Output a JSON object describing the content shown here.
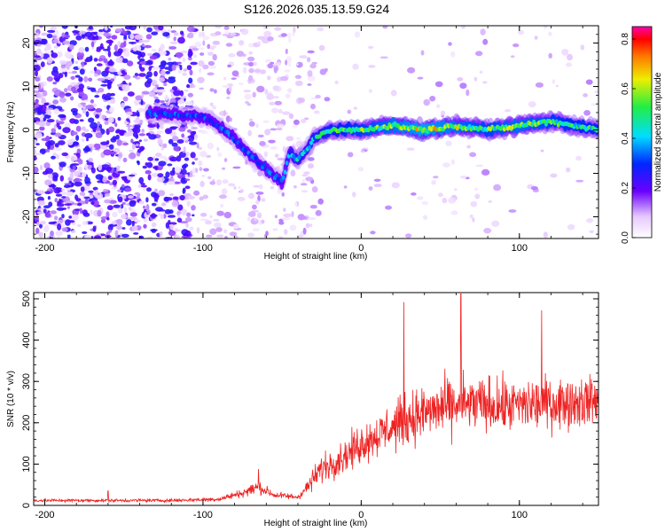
{
  "chart_data": [
    {
      "type": "heatmap",
      "title": "S126.2026.035.13.59.G24",
      "xlabel": "Height of straight line (km)",
      "ylabel": "Frequency (Hz)",
      "xlim": [
        -207,
        150
      ],
      "ylim": [
        -25,
        24
      ],
      "xticks": [
        -200,
        -100,
        0,
        100
      ],
      "xtick_labels": [
        "-200",
        "-100",
        "0",
        "100"
      ],
      "yticks": [
        -20,
        -10,
        0,
        10,
        20
      ],
      "ytick_labels": [
        "-20",
        "-10",
        "0",
        "10",
        "20"
      ],
      "colorbar": {
        "label": "Normalized spectral amplitude",
        "range": [
          0.0,
          0.85
        ],
        "ticks": [
          0.0,
          0.2,
          0.4,
          0.6,
          0.8
        ],
        "tick_labels": [
          "0.0",
          "0.2",
          "0.4",
          "0.6",
          "0.8"
        ]
      },
      "ridge": {
        "x": [
          -135,
          -100,
          -90,
          -80,
          -70,
          -60,
          -50,
          -45,
          -40,
          -35,
          -30,
          -20,
          0,
          20,
          40,
          60,
          80,
          100,
          120,
          150
        ],
        "y": [
          4,
          3,
          1,
          -2,
          -6,
          -9,
          -12,
          -5,
          -7,
          -5,
          -2,
          0,
          0,
          1,
          0,
          1,
          0,
          1,
          2,
          0
        ],
        "amplitude": [
          0.3,
          0.3,
          0.3,
          0.3,
          0.3,
          0.3,
          0.3,
          0.35,
          0.4,
          0.35,
          0.4,
          0.45,
          0.5,
          0.55,
          0.6,
          0.55,
          0.5,
          0.55,
          0.5,
          0.45
        ]
      }
    },
    {
      "type": "line",
      "xlabel": "Height of straight line (km)",
      "ylabel": "SNR (10 * v/v)",
      "xlim": [
        -207,
        150
      ],
      "ylim": [
        0,
        515
      ],
      "xticks": [
        -200,
        -100,
        0,
        100
      ],
      "xtick_labels": [
        "-200",
        "-100",
        "0",
        "100"
      ],
      "yticks": [
        0,
        100,
        200,
        300,
        400,
        500
      ],
      "ytick_labels": [
        "0",
        "100",
        "200",
        "300",
        "400",
        "500"
      ],
      "color": "#ee2222",
      "envelope": {
        "x": [
          -207,
          -120,
          -90,
          -75,
          -65,
          -55,
          -40,
          -35,
          -25,
          -10,
          0,
          10,
          20,
          30,
          50,
          70,
          90,
          110,
          130,
          150
        ],
        "mean": [
          12,
          12,
          15,
          30,
          45,
          25,
          20,
          40,
          90,
          120,
          150,
          170,
          190,
          210,
          235,
          245,
          240,
          245,
          250,
          255
        ],
        "spread": [
          6,
          6,
          8,
          15,
          25,
          12,
          10,
          25,
          50,
          60,
          70,
          75,
          85,
          95,
          100,
          100,
          95,
          95,
          90,
          90
        ]
      },
      "peaks": [
        {
          "x": 63,
          "y": 512
        },
        {
          "x": 27,
          "y": 492
        },
        {
          "x": 114,
          "y": 472
        },
        {
          "x": -65,
          "y": 88
        },
        {
          "x": -160,
          "y": 35
        }
      ]
    }
  ]
}
